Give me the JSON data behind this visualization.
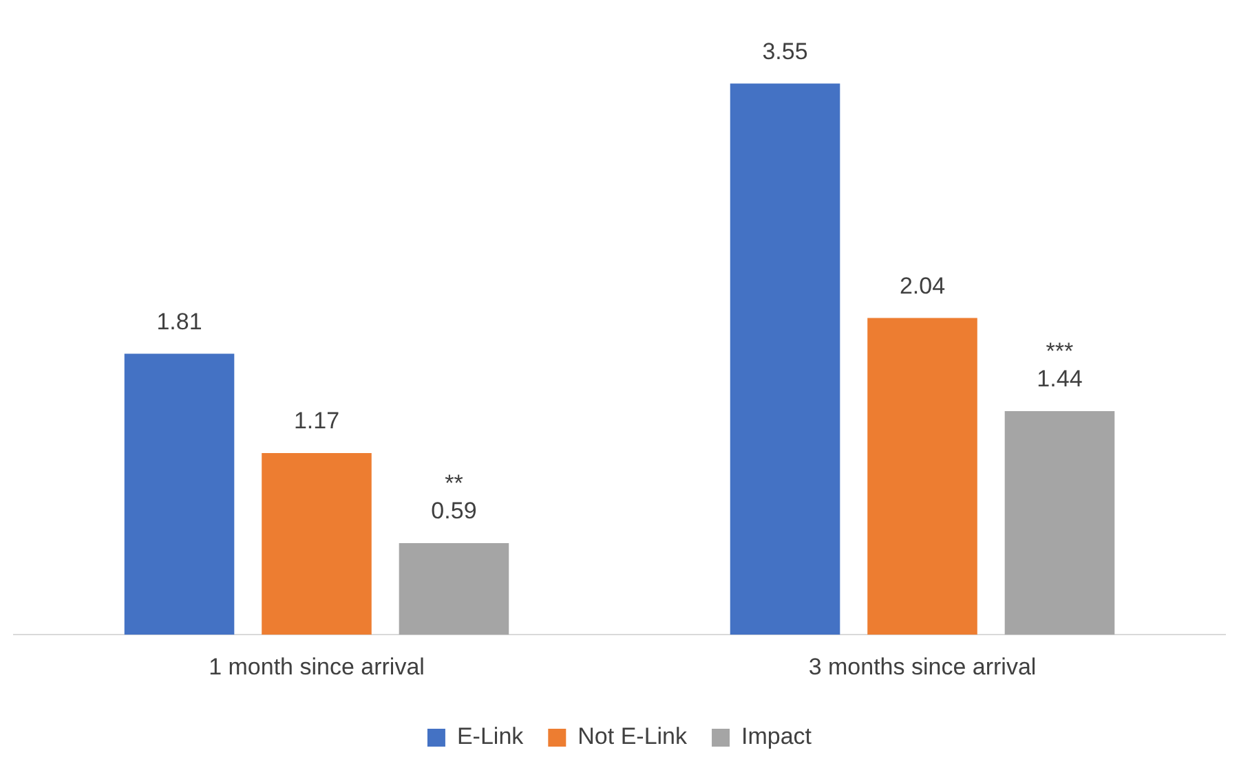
{
  "chart_data": {
    "type": "bar",
    "categories": [
      "1 month since arrival",
      "3 months since arrival"
    ],
    "series": [
      {
        "name": "E-Link",
        "color": "#4472c4",
        "values": [
          1.81,
          3.55
        ]
      },
      {
        "name": "Not E-Link",
        "color": "#ed7d31",
        "values": [
          1.17,
          2.04
        ]
      },
      {
        "name": "Impact",
        "color": "#a5a5a5",
        "values": [
          0.59,
          1.44
        ]
      }
    ],
    "data_labels": true,
    "legend": "bottom",
    "grid": false,
    "annotations": [
      "**",
      "***"
    ]
  }
}
